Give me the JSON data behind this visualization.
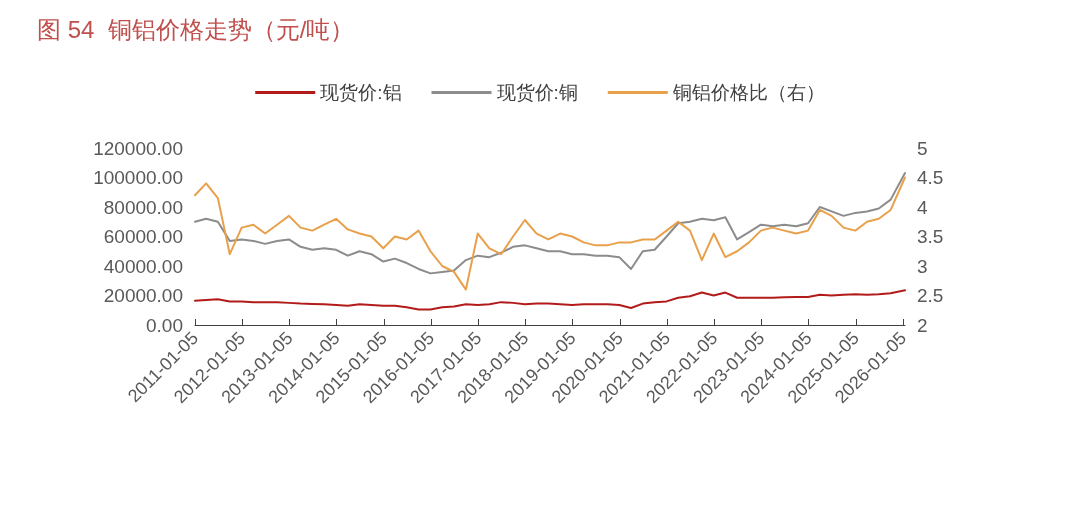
{
  "chart_data": {
    "type": "line",
    "title": "图 54  铜铝价格走势（元/吨）",
    "x": [
      "2011-01-05",
      "2011-04",
      "2011-07",
      "2011-10",
      "2012-01",
      "2012-04",
      "2012-07",
      "2012-10",
      "2013-01",
      "2013-04",
      "2013-07",
      "2013-10",
      "2014-01",
      "2014-04",
      "2014-07",
      "2014-10",
      "2015-01",
      "2015-04",
      "2015-07",
      "2015-10",
      "2016-01",
      "2016-04",
      "2016-07",
      "2016-10",
      "2017-01",
      "2017-04",
      "2017-07",
      "2017-10",
      "2018-01",
      "2018-04",
      "2018-07",
      "2018-10",
      "2019-01",
      "2019-04",
      "2019-07",
      "2019-10",
      "2020-01",
      "2020-04",
      "2020-07",
      "2020-10",
      "2021-01",
      "2021-04",
      "2021-07",
      "2021-10",
      "2022-01",
      "2022-04",
      "2022-07",
      "2022-10",
      "2023-01",
      "2023-04",
      "2023-07",
      "2023-10",
      "2024-01",
      "2024-04",
      "2024-07",
      "2024-10",
      "2025-01",
      "2025-04",
      "2025-07",
      "2025-10",
      "2026-01-20"
    ],
    "series": [
      {
        "name": "现货价:铝",
        "color": "#b31b1b",
        "values": [
          16500,
          17000,
          17500,
          16000,
          16000,
          15500,
          15500,
          15500,
          15000,
          14500,
          14300,
          14000,
          13500,
          13000,
          14000,
          13500,
          13000,
          13000,
          12000,
          10500,
          10500,
          12000,
          12500,
          14000,
          13500,
          14000,
          15500,
          15000,
          14000,
          14500,
          14500,
          14000,
          13500,
          14000,
          14000,
          14000,
          13500,
          11500,
          14500,
          15500,
          16000,
          18500,
          19500,
          22000,
          20000,
          22000,
          18500,
          18500,
          18500,
          18500,
          18800,
          19000,
          19000,
          20500,
          20000,
          20500,
          20800,
          20500,
          20800,
          21500,
          23500
        ]
      },
      {
        "name": "现货价:铜",
        "color": "#8c8c8c",
        "values": [
          70000,
          72000,
          70000,
          57000,
          58000,
          57000,
          55000,
          57000,
          58000,
          53000,
          51000,
          52000,
          51000,
          47000,
          50000,
          48000,
          43000,
          45000,
          42000,
          38000,
          35000,
          36000,
          37000,
          44000,
          47000,
          46000,
          49000,
          53000,
          54000,
          52000,
          50000,
          50000,
          48000,
          48000,
          47000,
          47000,
          46000,
          38000,
          50000,
          51000,
          60000,
          69000,
          70000,
          72000,
          71000,
          73000,
          58000,
          63000,
          68000,
          67000,
          68000,
          67000,
          69000,
          80000,
          77000,
          74000,
          76000,
          77000,
          79000,
          85000,
          103000
        ]
      },
      {
        "name": "铜铝价格比（右）",
        "color": "#e9a04b",
        "axis": "y2",
        "values": [
          4.2,
          4.4,
          4.15,
          3.2,
          3.65,
          3.7,
          3.55,
          3.7,
          3.85,
          3.65,
          3.6,
          3.7,
          3.8,
          3.62,
          3.55,
          3.5,
          3.3,
          3.5,
          3.45,
          3.6,
          3.25,
          3.0,
          2.9,
          2.6,
          3.55,
          3.3,
          3.2,
          3.5,
          3.78,
          3.55,
          3.45,
          3.55,
          3.5,
          3.4,
          3.35,
          3.35,
          3.4,
          3.4,
          3.45,
          3.45,
          3.6,
          3.75,
          3.6,
          3.1,
          3.55,
          3.15,
          3.25,
          3.4,
          3.6,
          3.65,
          3.6,
          3.55,
          3.6,
          3.95,
          3.85,
          3.65,
          3.6,
          3.75,
          3.8,
          3.95,
          4.5
        ]
      }
    ],
    "xlim": [
      "2011-01-05",
      "2026-01-20"
    ],
    "xticks": [
      "2011-01-05",
      "2012-01-05",
      "2013-01-05",
      "2014-01-05",
      "2015-01-05",
      "2016-01-05",
      "2017-01-05",
      "2018-01-05",
      "2019-01-05",
      "2020-01-05",
      "2021-01-05",
      "2022-01-05",
      "2023-01-05",
      "2024-01-05",
      "2025-01-05",
      "2026-01-05"
    ],
    "ylim": [
      0,
      120000
    ],
    "yticks": [
      {
        "value": 0,
        "label": "0.00"
      },
      {
        "value": 20000,
        "label": "20000.00"
      },
      {
        "value": 40000,
        "label": "40000.00"
      },
      {
        "value": 60000,
        "label": "60000.00"
      },
      {
        "value": 80000,
        "label": "80000.00"
      },
      {
        "value": 100000,
        "label": "100000.00"
      },
      {
        "value": 120000,
        "label": "120000.00"
      }
    ],
    "y2lim": [
      2,
      5
    ],
    "y2ticks": [
      2,
      2.5,
      3,
      3.5,
      4,
      4.5,
      5
    ],
    "legend": "top",
    "grid": false,
    "marker": "none",
    "line_style": "solid"
  }
}
